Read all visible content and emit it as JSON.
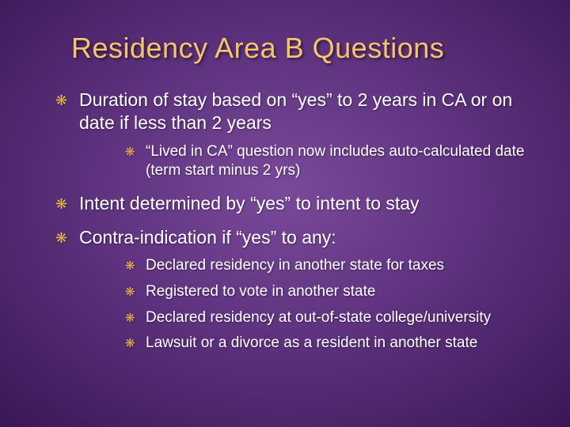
{
  "slide": {
    "title": "Residency Area B Questions",
    "background": {
      "gradient_center": "#7a4a9a",
      "gradient_mid": "#3d1a5a",
      "gradient_edge": "#0a0420"
    },
    "title_color": "#f5c56a",
    "text_color": "#ffffff",
    "bullet_color": "#e8b255",
    "bullet_glyph": "❋",
    "title_fontsize": 36,
    "top_fontsize": 23,
    "sub_fontsize": 19,
    "items": [
      {
        "text": "Duration of stay based on “yes” to 2 years in CA or on date if less than 2 years",
        "sub": [
          {
            "text": "“Lived in CA” question now includes auto-calculated date (term start minus 2 yrs)"
          }
        ]
      },
      {
        "text": "Intent determined by “yes” to intent to stay",
        "sub": []
      },
      {
        "text": "Contra-indication if “yes” to any:",
        "sub": [
          {
            "text": "Declared residency in another state for taxes"
          },
          {
            "text": "Registered to vote in another state"
          },
          {
            "text": "Declared residency at out-of-state college/university"
          },
          {
            "text": "Lawsuit or a divorce as a resident in another state"
          }
        ]
      }
    ]
  }
}
